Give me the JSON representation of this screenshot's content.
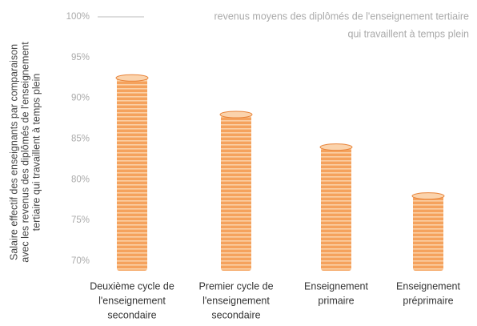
{
  "chart_data": {
    "type": "bar",
    "ylabel": [
      "Salaire effectif des enseignants par comparaison",
      "avec les revenus des diplômés de l'enseignement",
      "tertiaire qui travaillent à temps plein"
    ],
    "annotation": [
      "revenus moyens des diplômés de l'enseignement tertiaire",
      "qui travaillent à temps plein"
    ],
    "reference_value": 100,
    "categories": [
      [
        "Deuxième cycle de",
        "l'enseignement",
        "secondaire"
      ],
      [
        "Premier cycle de",
        "l'enseignement",
        "secondaire"
      ],
      [
        "Enseignement",
        "primaire"
      ],
      [
        "Enseignement",
        "préprimaire"
      ]
    ],
    "values": [
      92.5,
      88,
      84,
      78
    ],
    "color": "#f5a25d",
    "ylim": [
      70,
      100
    ],
    "yticks": [
      {
        "value": 70,
        "label": "70%"
      },
      {
        "value": 75,
        "label": "75%"
      },
      {
        "value": 80,
        "label": "80%"
      },
      {
        "value": 85,
        "label": "85%"
      },
      {
        "value": 90,
        "label": "90%"
      },
      {
        "value": 95,
        "label": "95%"
      },
      {
        "value": 100,
        "label": "100%"
      }
    ],
    "grid": false
  }
}
